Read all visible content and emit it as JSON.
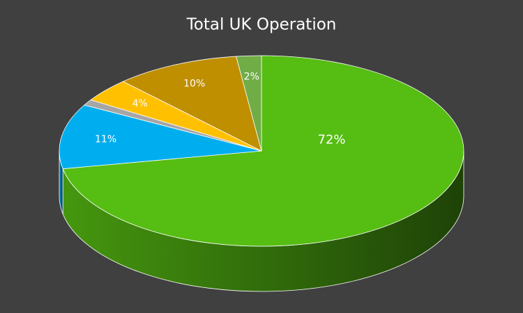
{
  "chart_data": {
    "type": "pie",
    "title": "Total UK Operation",
    "values": [
      72,
      11,
      1,
      4,
      10,
      2
    ],
    "value_labels": [
      "72%",
      "11%",
      null,
      "4%",
      "10%",
      "2%"
    ],
    "colors": [
      "#56bd13",
      "#00aeef",
      "#a6a6a6",
      "#ffc000",
      "#bf8f00",
      "#70ad47"
    ]
  }
}
